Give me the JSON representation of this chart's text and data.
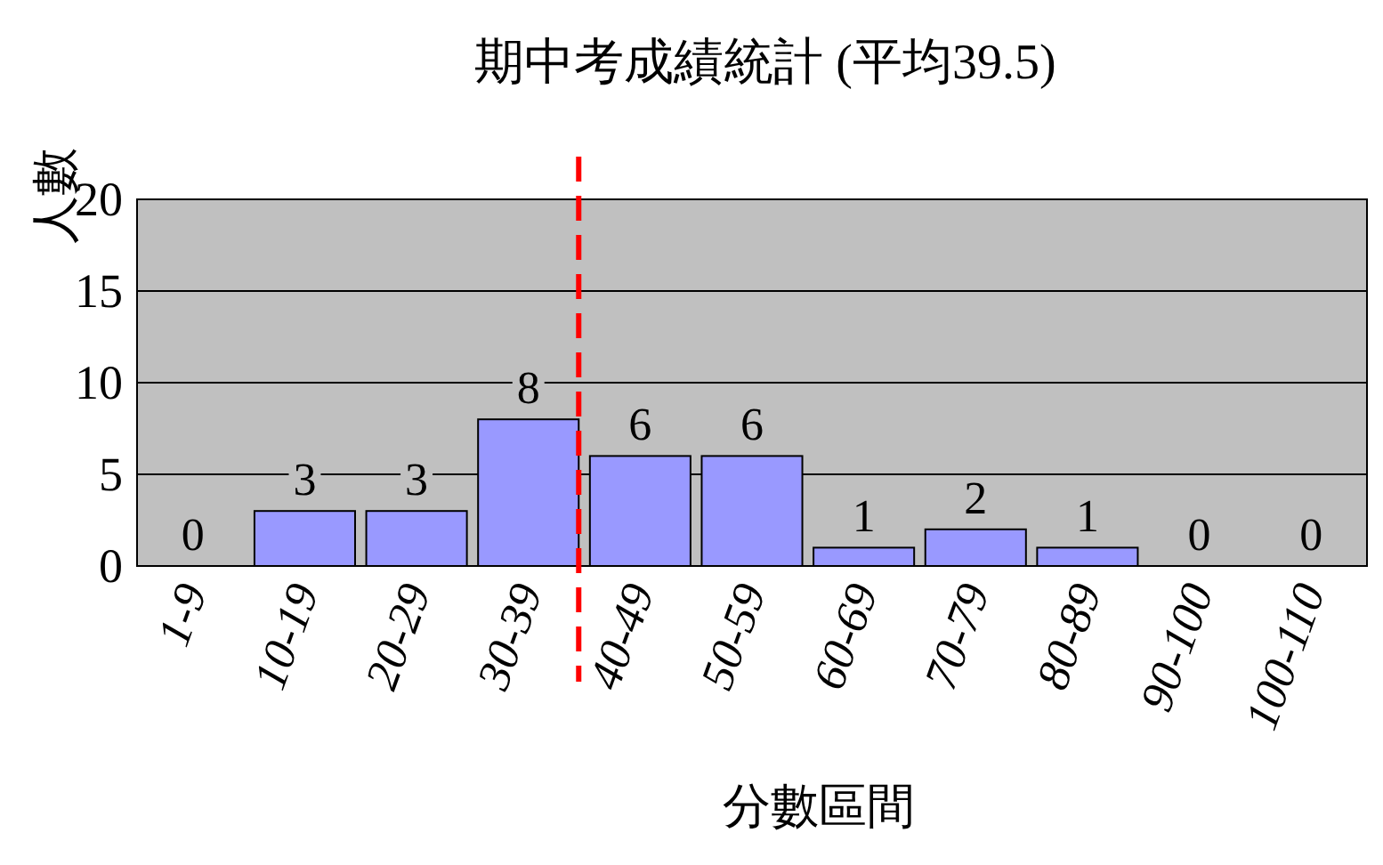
{
  "chart_data": {
    "type": "bar",
    "title": "期中考成績統計 (平均39.5)",
    "xlabel": "分數區間",
    "ylabel": "人數",
    "categories": [
      "1-9",
      "10-19",
      "20-29",
      "30-39",
      "40-49",
      "50-59",
      "60-69",
      "70-79",
      "80-89",
      "90-100",
      "100-110"
    ],
    "values": [
      0,
      3,
      3,
      8,
      6,
      6,
      1,
      2,
      1,
      0,
      0
    ],
    "color": "#9999ff",
    "data_labels": true,
    "ylim": [
      0,
      20
    ],
    "yticks": [
      0,
      5,
      10,
      15,
      20
    ],
    "grid": "y",
    "ref_lines": [
      {
        "axis": "x",
        "value": "30-39",
        "color": "#ff0000",
        "line_style": "dashed"
      }
    ]
  }
}
